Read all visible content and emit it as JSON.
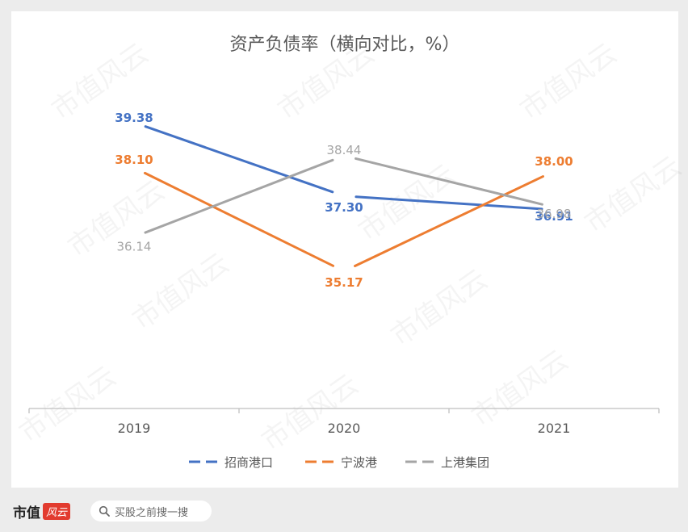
{
  "chart_data": {
    "type": "line",
    "title": "资产负债率（横向对比，%）",
    "categories": [
      "2019",
      "2020",
      "2021"
    ],
    "series": [
      {
        "name": "招商港口",
        "values": [
          39.38,
          37.3,
          36.91
        ],
        "labels": [
          "39.38",
          "37.30",
          "36.91"
        ],
        "color": "#4472c4"
      },
      {
        "name": "宁波港",
        "values": [
          38.1,
          35.17,
          38.0
        ],
        "labels": [
          "38.10",
          "35.17",
          "38.00"
        ],
        "color": "#ed7d31"
      },
      {
        "name": "上港集团",
        "values": [
          36.14,
          38.44,
          36.98
        ],
        "labels": [
          "36.14",
          "38.44",
          "36.98"
        ],
        "color": "#a5a5a5"
      }
    ],
    "ylim": [
      33.0,
      40.0
    ],
    "grid": false,
    "legend_position": "bottom"
  },
  "watermark": "市值风云",
  "footer": {
    "brand": "市值",
    "brand_badge": "风云",
    "search_placeholder": "买股之前搜一搜"
  }
}
